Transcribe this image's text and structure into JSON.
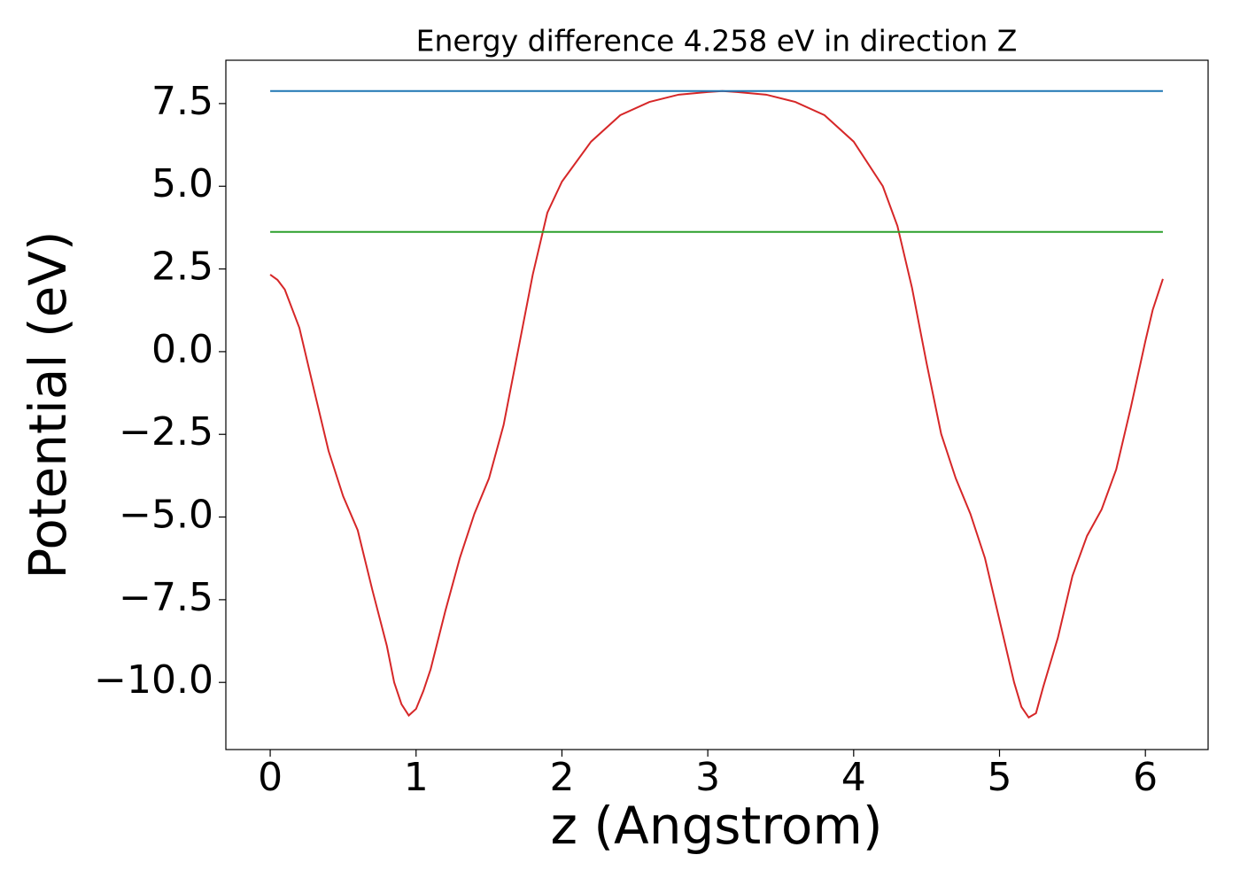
{
  "chart_data": {
    "type": "line",
    "title": "Energy difference 4.258 eV in direction Z",
    "xlabel": "z (Angstrom)",
    "ylabel": "Potential (eV)",
    "xlim": [
      -0.304,
      6.43
    ],
    "ylim": [
      -12.03,
      8.81
    ],
    "xticks": [
      0,
      1,
      2,
      3,
      4,
      5,
      6
    ],
    "yticks": [
      {
        "value": -10,
        "label": "−10.0"
      },
      {
        "value": -7.5,
        "label": "−7.5"
      },
      {
        "value": -5,
        "label": "−5.0"
      },
      {
        "value": -2.5,
        "label": "−2.5"
      },
      {
        "value": 0,
        "label": "0.0"
      },
      2.5,
      {
        "value": 5,
        "label": "5.0"
      },
      {
        "value": 7.5,
        "label": "7.5"
      }
    ],
    "grid": false,
    "series": [
      {
        "color": "#d62728",
        "x": [
          0,
          0.05,
          0.1,
          0.2,
          0.3,
          0.4,
          0.5,
          0.6,
          0.7,
          0.8,
          0.85,
          0.9,
          0.95,
          1.0,
          1.05,
          1.1,
          1.2,
          1.3,
          1.4,
          1.5,
          1.6,
          1.7,
          1.8,
          1.9,
          2.0,
          2.2,
          2.4,
          2.6,
          2.8,
          3.0,
          3.1,
          3.2,
          3.4,
          3.6,
          3.8,
          4.0,
          4.2,
          4.3,
          4.4,
          4.5,
          4.6,
          4.7,
          4.8,
          4.9,
          5.0,
          5.1,
          5.15,
          5.2,
          5.25,
          5.3,
          5.4,
          5.5,
          5.6,
          5.7,
          5.8,
          5.9,
          6.0,
          6.05,
          6.1,
          6.12
        ],
        "values": [
          2.33,
          2.17,
          1.88,
          0.72,
          -1.15,
          -3.0,
          -4.37,
          -5.4,
          -7.2,
          -8.9,
          -10.0,
          -10.66,
          -11.0,
          -10.8,
          -10.26,
          -9.6,
          -7.85,
          -6.24,
          -4.9,
          -3.83,
          -2.22,
          0.05,
          2.33,
          4.2,
          5.14,
          6.35,
          7.15,
          7.55,
          7.77,
          7.85,
          7.88,
          7.85,
          7.77,
          7.55,
          7.15,
          6.35,
          5.0,
          3.8,
          1.93,
          -0.35,
          -2.49,
          -3.83,
          -4.9,
          -6.24,
          -8.12,
          -10.0,
          -10.74,
          -11.06,
          -10.93,
          -10.13,
          -8.65,
          -6.78,
          -5.57,
          -4.77,
          -3.56,
          -1.69,
          0.32,
          1.26,
          1.93,
          2.2
        ]
      },
      {
        "color": "#1f77b4",
        "x": [
          0,
          6.12
        ],
        "values": [
          7.88,
          7.88
        ]
      },
      {
        "color": "#2ca02c",
        "x": [
          0,
          6.12
        ],
        "values": [
          3.62,
          3.62
        ]
      }
    ]
  }
}
